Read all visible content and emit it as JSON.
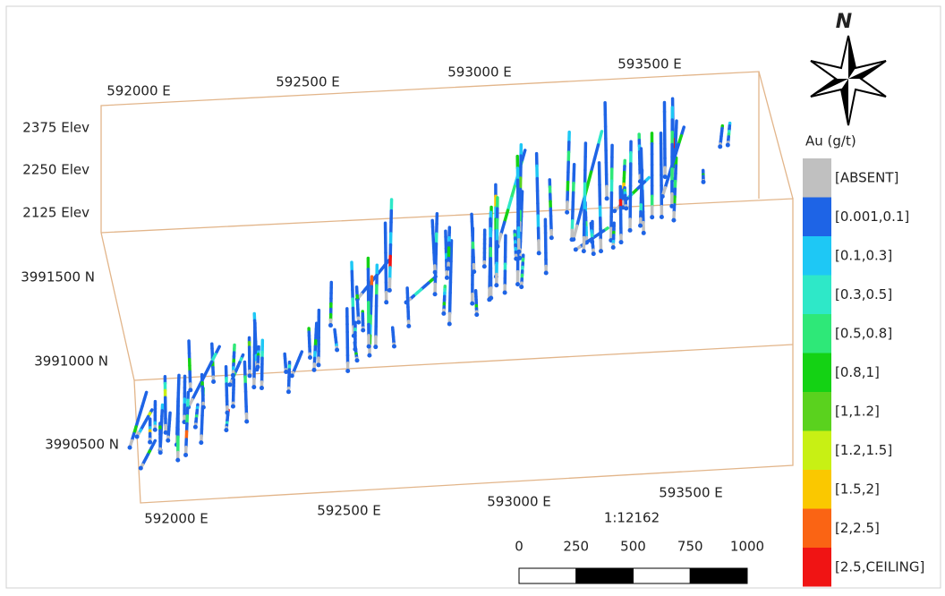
{
  "axes": {
    "top_easting": [
      "592000 E",
      "592500 E",
      "593000 E",
      "593500 E"
    ],
    "bottom_easting": [
      "592000 E",
      "592500 E",
      "593000 E",
      "593500 E"
    ],
    "elevation": [
      "2375 Elev",
      "2250 Elev",
      "2125 Elev"
    ],
    "northing": [
      "3991500 N",
      "3991000 N",
      "3990500 N"
    ]
  },
  "north_arrow": "N",
  "legend": {
    "title": "Au (g/t)",
    "items": [
      {
        "label": "[ABSENT]",
        "color": "#c0c0c0"
      },
      {
        "label": "[0.001,0.1]",
        "color": "#1e64e6"
      },
      {
        "label": "[0.1,0.3]",
        "color": "#1ec8f5"
      },
      {
        "label": "[0.3,0.5]",
        "color": "#2ee8c8"
      },
      {
        "label": "[0.5,0.8]",
        "color": "#2ee878"
      },
      {
        "label": "[0.8,1]",
        "color": "#14d214"
      },
      {
        "label": "[1,1.2]",
        "color": "#5ad21e"
      },
      {
        "label": "[1.2,1.5]",
        "color": "#c8f014"
      },
      {
        "label": "[1.5,2]",
        "color": "#fac800"
      },
      {
        "label": "[2,2.5]",
        "color": "#fa6414"
      },
      {
        "label": "[2.5,CEILING]",
        "color": "#f01414"
      }
    ]
  },
  "scale_bar": {
    "ratio": "1:12162",
    "labels": [
      "0",
      "250",
      "500",
      "750",
      "1000"
    ]
  }
}
